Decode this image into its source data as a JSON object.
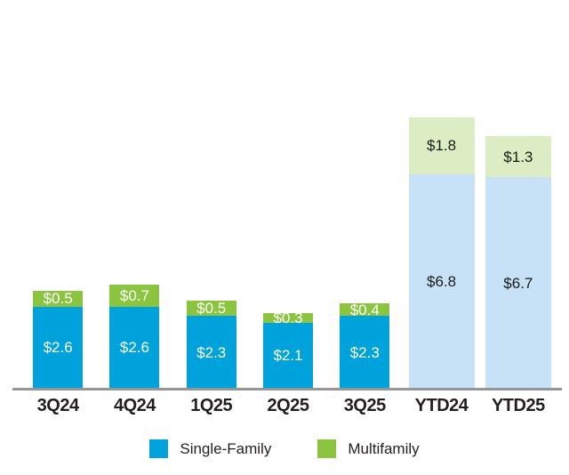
{
  "chart_data": {
    "type": "bar",
    "stacked": true,
    "title": "",
    "xlabel": "",
    "ylabel": "",
    "grid": false,
    "y_axis_shown": false,
    "legend_position": "bottom-center",
    "categories": [
      "3Q24",
      "4Q24",
      "1Q25",
      "2Q25",
      "3Q25",
      "YTD24",
      "YTD25"
    ],
    "series": [
      {
        "name": "Single-Family",
        "color": "#00A2DC",
        "color_light": "#C7E2F6",
        "values": [
          2.6,
          2.6,
          2.3,
          2.1,
          2.3,
          6.8,
          6.7
        ],
        "labels": [
          "$2.6",
          "$2.6",
          "$2.3",
          "$2.1",
          "$2.3",
          "$6.8",
          "$6.7"
        ]
      },
      {
        "name": "Multifamily",
        "color": "#8BC540",
        "color_light": "#DCEDC3",
        "values": [
          0.5,
          0.7,
          0.5,
          0.3,
          0.4,
          1.8,
          1.3
        ],
        "labels": [
          "$0.5",
          "$0.7",
          "$0.5",
          "$0.3",
          "$0.4",
          "$1.8",
          "$1.3"
        ]
      }
    ],
    "light_categories": [
      "YTD24",
      "YTD25"
    ],
    "colors": {
      "label_on_solid": "#FFFFFF",
      "label_on_light": "#1A1A1A",
      "axis_line": "#939598",
      "axis_label": "#231F20"
    },
    "legend": [
      {
        "label": "Single-Family",
        "swatch": "#00A2DC"
      },
      {
        "label": "Multifamily",
        "swatch": "#8BC540"
      }
    ]
  }
}
